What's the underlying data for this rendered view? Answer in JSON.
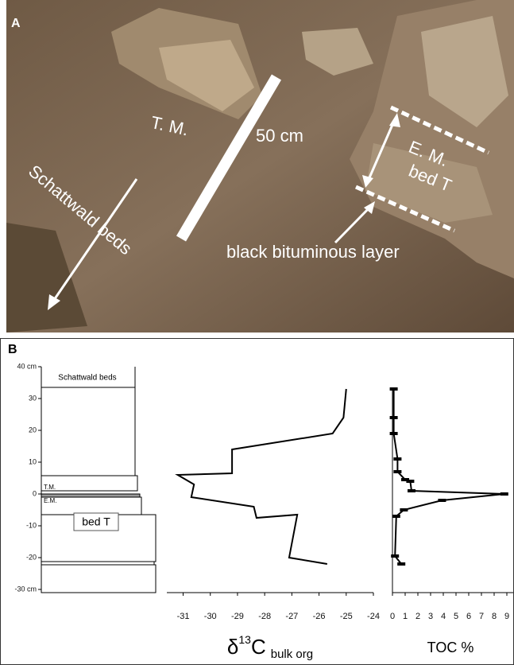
{
  "panel_a": {
    "label": "A",
    "annotations": {
      "tm": "T. M.",
      "scale": "50 cm",
      "schattwald": "Schattwald beds",
      "em": "E. M.",
      "bed": "bed T",
      "layer": "black bituminous layer"
    }
  },
  "panel_b": {
    "label": "B",
    "column": {
      "schattwald": "Schattwald beds",
      "tm": "T.M.",
      "em": "E.M.",
      "bed": "bed T"
    }
  },
  "chart_data": [
    {
      "type": "line",
      "xlabel": {
        "symbol": "δ",
        "sup": "13",
        "main": "C",
        "sub": "bulk org"
      },
      "values": [
        -25,
        -25.1,
        -25.5,
        -29.2,
        -29.2,
        -31.2,
        -30.6,
        -30.7,
        -28.4,
        -28.3,
        -26.8,
        -27.1,
        -25.7
      ],
      "depth": [
        33,
        24,
        19,
        14,
        6.5,
        6,
        3,
        -1,
        -4,
        -7.5,
        -6.5,
        -20,
        -22
      ],
      "color": "#000",
      "xlim": [
        -31.6,
        -24
      ],
      "xticks": [
        -31,
        -30,
        -29,
        -28,
        -27,
        -26,
        -25,
        -24
      ],
      "ylim": [
        -31,
        40
      ],
      "yticks": [
        {
          "value": 40,
          "label": "40 cm"
        },
        30,
        20,
        10,
        0,
        -10,
        -20,
        {
          "value": -30,
          "label": "-30 cm"
        }
      ]
    },
    {
      "type": "line",
      "xlabel": "TOC %",
      "markers": true,
      "values": [
        0.1,
        0.1,
        0.1,
        0.4,
        0.4,
        1,
        1.4,
        1.5,
        8.8,
        3.9,
        0.9,
        0.3,
        0.2,
        0.7
      ],
      "depth": [
        33,
        24,
        19,
        11,
        7,
        4.5,
        4,
        1,
        0,
        -2,
        -5,
        -7,
        -19.5,
        -22
      ],
      "color": "#000",
      "xlim": [
        0,
        9.5
      ],
      "xticks": [
        0,
        1,
        2,
        3,
        4,
        5,
        6,
        7,
        8,
        9
      ],
      "ylim": [
        -31,
        40
      ]
    }
  ]
}
